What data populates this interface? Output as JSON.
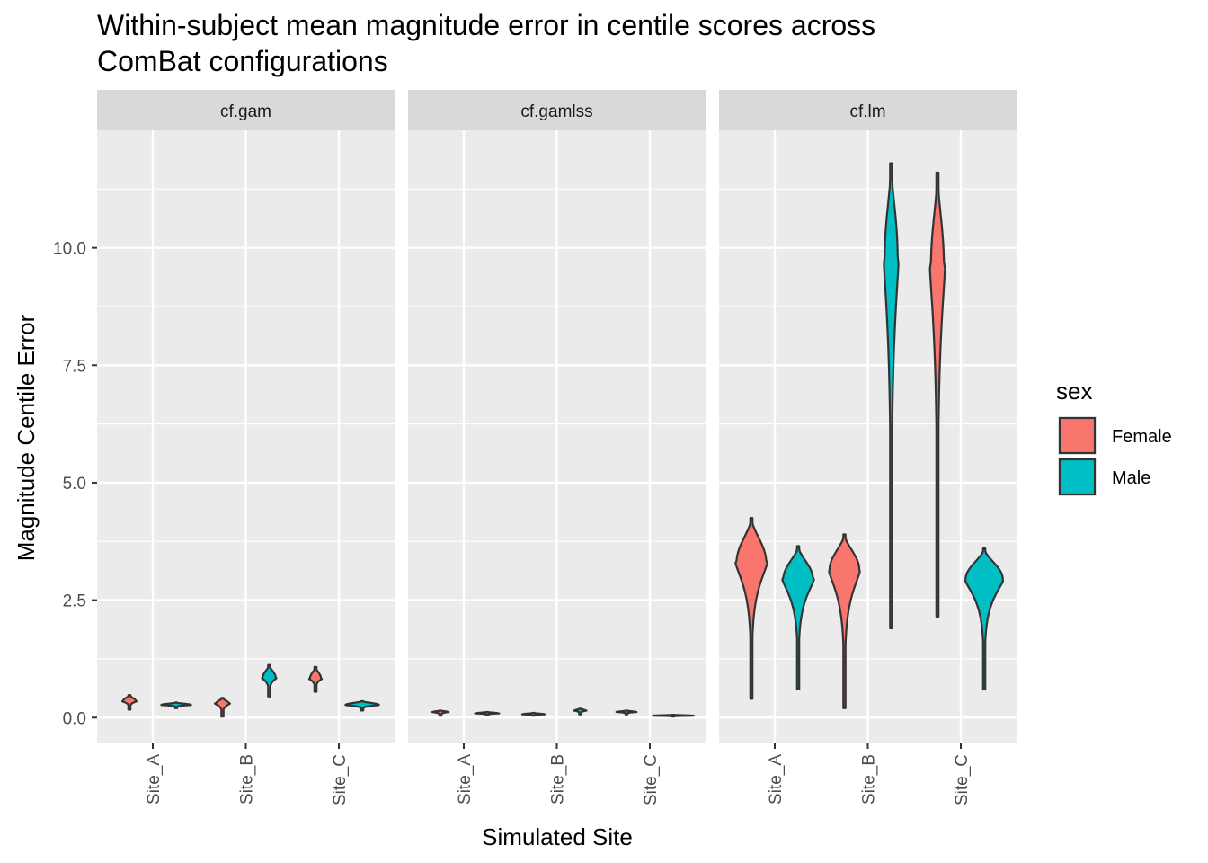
{
  "chart_data": {
    "type": "violin",
    "title": "Within-subject mean magnitude error in centile scores across ComBat configurations",
    "title_lines": [
      "Within-subject mean magnitude error in centile scores across",
      "ComBat configurations"
    ],
    "xlabel": "Simulated Site",
    "ylabel": "Magnitude Centile Error",
    "ylim": [
      -0.55,
      12.5
    ],
    "yticks": [
      0.0,
      2.5,
      5.0,
      7.5,
      10.0
    ],
    "ytick_labels": [
      "0.0",
      "2.5",
      "5.0",
      "7.5",
      "10.0"
    ],
    "categories": [
      "Site_A",
      "Site_B",
      "Site_C"
    ],
    "facets": [
      "cf.gam",
      "cf.gamlss",
      "cf.lm"
    ],
    "grid": true,
    "legend": {
      "title": "sex",
      "position": "right",
      "entries": [
        {
          "name": "Female",
          "color": "#F8766D"
        },
        {
          "name": "Male",
          "color": "#00BFC4"
        }
      ]
    },
    "series": [
      {
        "name": "Female",
        "color": "#F8766D",
        "violins": [
          {
            "facet": "cf.gam",
            "site": "Site_A",
            "min": 0.17,
            "max": 0.48,
            "mode": 0.35,
            "half_width": 0.07
          },
          {
            "facet": "cf.gam",
            "site": "Site_B",
            "min": 0.02,
            "max": 0.42,
            "mode": 0.3,
            "half_width": 0.07
          },
          {
            "facet": "cf.gam",
            "site": "Site_C",
            "min": 0.55,
            "max": 1.08,
            "mode": 0.83,
            "half_width": 0.06
          },
          {
            "facet": "cf.gamlss",
            "site": "Site_A",
            "min": 0.04,
            "max": 0.15,
            "mode": 0.12,
            "half_width": 0.08
          },
          {
            "facet": "cf.gamlss",
            "site": "Site_B",
            "min": 0.04,
            "max": 0.1,
            "mode": 0.07,
            "half_width": 0.12
          },
          {
            "facet": "cf.gamlss",
            "site": "Site_C",
            "min": 0.07,
            "max": 0.15,
            "mode": 0.12,
            "half_width": 0.1
          },
          {
            "facet": "cf.lm",
            "site": "Site_A",
            "min": 0.4,
            "max": 4.25,
            "mode": 3.3,
            "half_width": 0.16
          },
          {
            "facet": "cf.lm",
            "site": "Site_B",
            "min": 0.2,
            "max": 3.9,
            "mode": 3.15,
            "half_width": 0.16
          },
          {
            "facet": "cf.lm",
            "site": "Site_C",
            "min": 2.15,
            "max": 11.6,
            "mode": 9.6,
            "half_width": 0.07
          }
        ]
      },
      {
        "name": "Male",
        "color": "#00BFC4",
        "violins": [
          {
            "facet": "cf.gam",
            "site": "Site_A",
            "min": 0.2,
            "max": 0.32,
            "mode": 0.27,
            "half_width": 0.16
          },
          {
            "facet": "cf.gam",
            "site": "Site_B",
            "min": 0.45,
            "max": 1.12,
            "mode": 0.85,
            "half_width": 0.07
          },
          {
            "facet": "cf.gam",
            "site": "Site_C",
            "min": 0.15,
            "max": 0.35,
            "mode": 0.27,
            "half_width": 0.18
          },
          {
            "facet": "cf.gamlss",
            "site": "Site_A",
            "min": 0.05,
            "max": 0.12,
            "mode": 0.09,
            "half_width": 0.12
          },
          {
            "facet": "cf.gamlss",
            "site": "Site_B",
            "min": 0.07,
            "max": 0.19,
            "mode": 0.15,
            "half_width": 0.06
          },
          {
            "facet": "cf.gamlss",
            "site": "Site_C",
            "min": 0.02,
            "max": 0.06,
            "mode": 0.04,
            "half_width": 0.22
          },
          {
            "facet": "cf.lm",
            "site": "Site_A",
            "min": 0.6,
            "max": 3.65,
            "mode": 2.95,
            "half_width": 0.16
          },
          {
            "facet": "cf.lm",
            "site": "Site_B",
            "min": 1.9,
            "max": 11.8,
            "mode": 9.8,
            "half_width": 0.07
          },
          {
            "facet": "cf.lm",
            "site": "Site_C",
            "min": 0.6,
            "max": 3.6,
            "mode": 2.95,
            "half_width": 0.2
          }
        ]
      }
    ]
  }
}
